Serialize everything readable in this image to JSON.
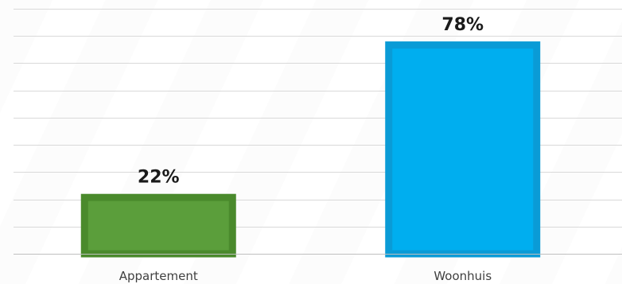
{
  "chart_data": {
    "type": "bar",
    "title": "",
    "xlabel": "",
    "ylabel": "",
    "categories": [
      "Appartement",
      "Woonhuis"
    ],
    "values": [
      22,
      78
    ],
    "value_labels": [
      "22%",
      "78%"
    ],
    "ylim": [
      0,
      90
    ],
    "grid": true,
    "legend": "none",
    "colors": {
      "Appartement": {
        "fill": "#5B9E3B",
        "border": "#4A8A2C"
      },
      "Woonhuis": {
        "fill": "#00AEEF",
        "border": "#0A9BD6"
      },
      "gridline": "#D9D9D9",
      "axis": "#BFBFBF"
    }
  }
}
